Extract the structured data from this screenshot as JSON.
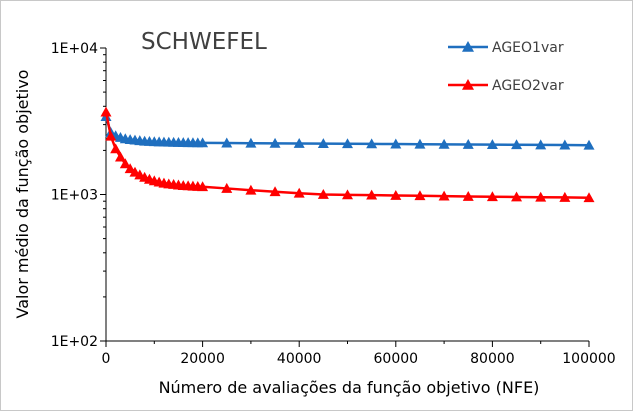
{
  "chart_data": {
    "type": "line",
    "title": "SCHWEFEL",
    "xlabel": "Número de avaliações da função objetivo (NFE)",
    "ylabel": "Valor médio da função objetivo",
    "xlim": [
      0,
      100000
    ],
    "ylim": [
      100,
      10000
    ],
    "yscale": "log",
    "grid": false,
    "legend_position": "top-right",
    "x_ticks": [
      0,
      20000,
      40000,
      60000,
      80000,
      100000
    ],
    "x_tick_labels": [
      "0",
      "20000",
      "40000",
      "60000",
      "80000",
      "100000"
    ],
    "y_ticks": [
      100,
      1000,
      10000
    ],
    "y_tick_labels": [
      "1E+02",
      "1E+03",
      "1E+04"
    ],
    "series": [
      {
        "name": "AGEO1var",
        "color": "#1f6fbf",
        "x": [
          0,
          1000,
          2000,
          3000,
          4000,
          5000,
          6000,
          7000,
          8000,
          9000,
          10000,
          11000,
          12000,
          13000,
          14000,
          15000,
          16000,
          17000,
          18000,
          19000,
          20000,
          25000,
          30000,
          35000,
          40000,
          45000,
          50000,
          55000,
          60000,
          65000,
          70000,
          75000,
          80000,
          85000,
          90000,
          95000,
          100000
        ],
        "values": [
          3400,
          2650,
          2520,
          2450,
          2400,
          2370,
          2350,
          2330,
          2310,
          2300,
          2290,
          2285,
          2280,
          2275,
          2270,
          2265,
          2260,
          2258,
          2255,
          2252,
          2250,
          2245,
          2240,
          2235,
          2230,
          2225,
          2220,
          2215,
          2210,
          2205,
          2200,
          2195,
          2190,
          2185,
          2180,
          2175,
          2170
        ]
      },
      {
        "name": "AGEO2var",
        "color": "#ff0000",
        "x": [
          0,
          1000,
          2000,
          3000,
          4000,
          5000,
          6000,
          7000,
          8000,
          9000,
          10000,
          11000,
          12000,
          13000,
          14000,
          15000,
          16000,
          17000,
          18000,
          19000,
          20000,
          25000,
          30000,
          35000,
          40000,
          45000,
          50000,
          55000,
          60000,
          65000,
          70000,
          75000,
          80000,
          85000,
          90000,
          95000,
          100000
        ],
        "values": [
          3650,
          2500,
          2050,
          1800,
          1620,
          1500,
          1420,
          1360,
          1310,
          1270,
          1240,
          1215,
          1195,
          1180,
          1170,
          1160,
          1150,
          1145,
          1140,
          1135,
          1130,
          1100,
          1070,
          1045,
          1020,
          1000,
          995,
          990,
          985,
          980,
          975,
          970,
          965,
          962,
          958,
          955,
          950
        ]
      }
    ]
  }
}
